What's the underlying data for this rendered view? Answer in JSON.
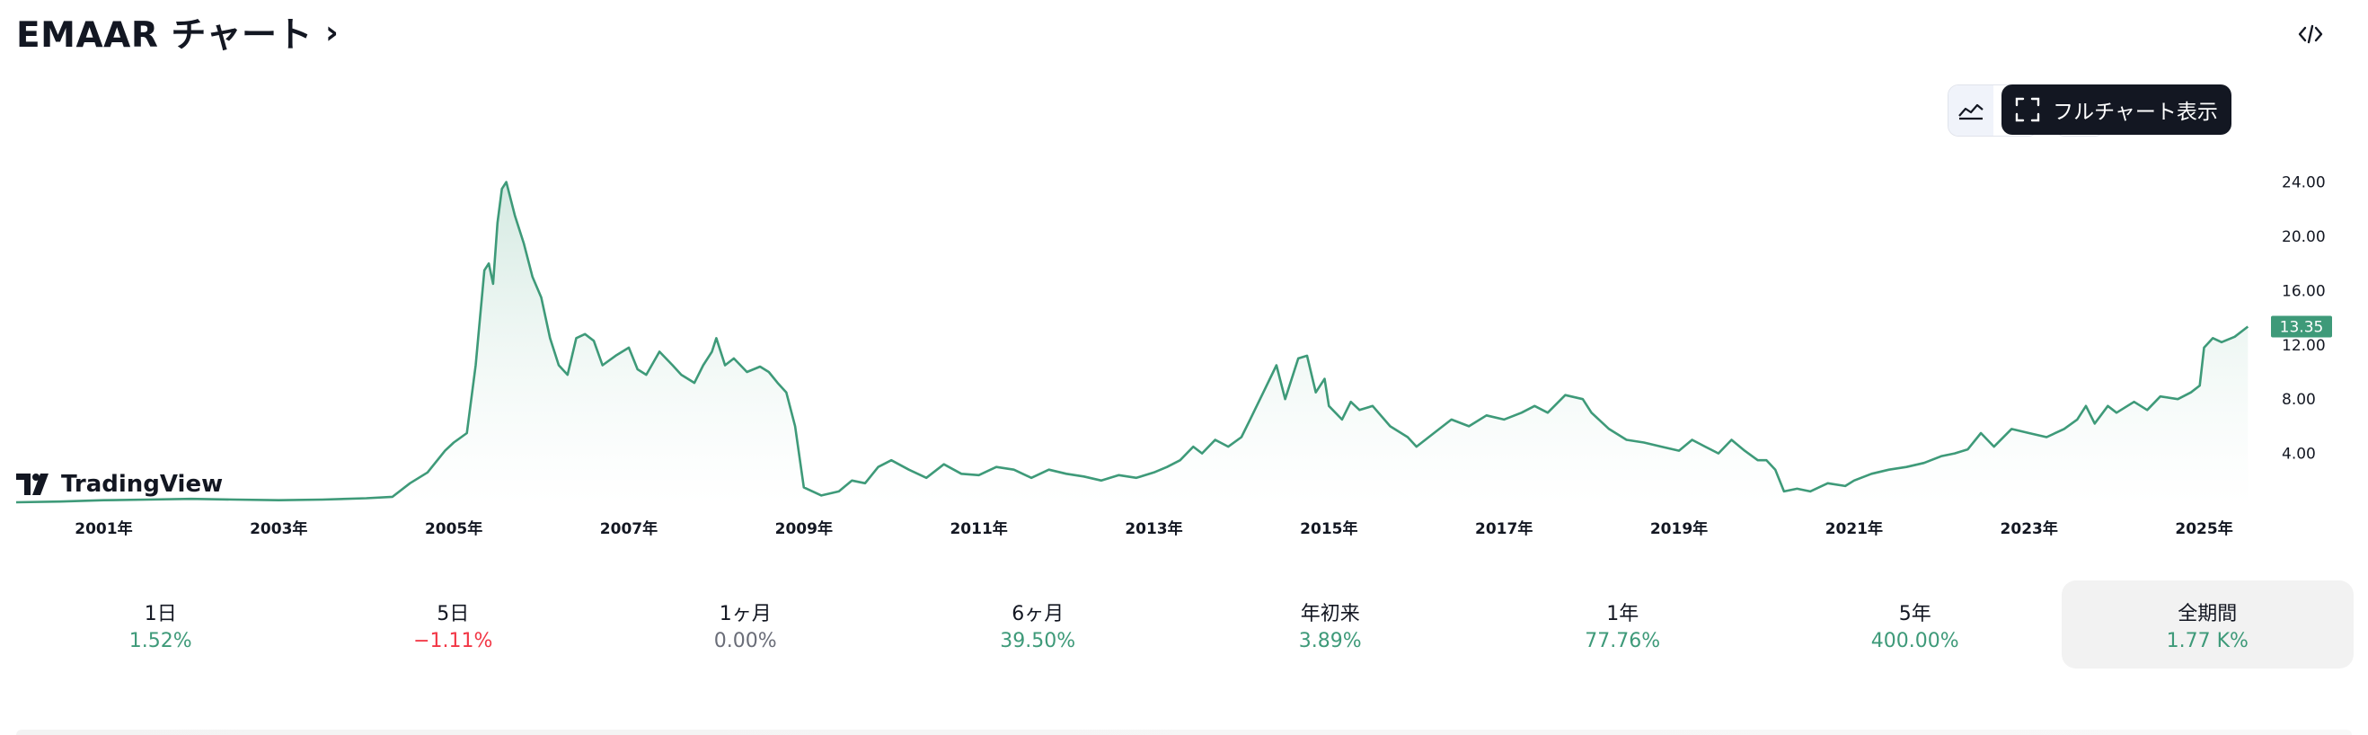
{
  "header": {
    "title": "EMAAR チャート",
    "chevron": "›"
  },
  "toolbar": {
    "full_chart_label": "フルチャート表示",
    "embed_icon": "code-embed-icon",
    "area_icon": "area-chart-icon",
    "candle_icon": "candlestick-icon",
    "snapshot_icon": "camera-icon",
    "fullscreen_icon": "fullscreen-icon"
  },
  "logo": {
    "text": "TradingView"
  },
  "colors": {
    "line": "#3e9a79",
    "fill_top": "#cfe7de",
    "fill_bottom": "#ffffff",
    "last_price_bg": "#3e9a79",
    "negative": "#f23645",
    "text": "#131722"
  },
  "performance": [
    {
      "label": "1日",
      "value": "1.52%",
      "tone": "pos"
    },
    {
      "label": "5日",
      "value": "−1.11%",
      "tone": "neg"
    },
    {
      "label": "1ヶ月",
      "value": "0.00%",
      "tone": "neu"
    },
    {
      "label": "6ヶ月",
      "value": "39.50%",
      "tone": "pos"
    },
    {
      "label": "年初来",
      "value": "3.89%",
      "tone": "pos"
    },
    {
      "label": "1年",
      "value": "77.76%",
      "tone": "pos"
    },
    {
      "label": "5年",
      "value": "400.00%",
      "tone": "pos"
    },
    {
      "label": "全期間",
      "value": "1.77 K%",
      "tone": "pos",
      "active": true
    }
  ],
  "chart_data": {
    "type": "area",
    "x_ticks": [
      "2001年",
      "2003年",
      "2005年",
      "2007年",
      "2009年",
      "2011年",
      "2013年",
      "2015年",
      "2017年",
      "2019年",
      "2021年",
      "2023年",
      "2025年"
    ],
    "x_tick_years": [
      2001,
      2003,
      2005,
      2007,
      2009,
      2011,
      2013,
      2015,
      2017,
      2019,
      2021,
      2023,
      2025
    ],
    "y_ticks": [
      "4.00",
      "8.00",
      "12.00",
      "16.00",
      "20.00",
      "24.00"
    ],
    "y_tick_values": [
      4,
      8,
      12,
      16,
      20,
      24
    ],
    "ylim": [
      0.2,
      25.5
    ],
    "xlim": [
      2000.0,
      2025.6
    ],
    "grid": false,
    "last_price": 13.35,
    "last_price_label": "13.35",
    "series": [
      {
        "x": [
          2000.0,
          2000.5,
          2001.0,
          2001.5,
          2002.0,
          2002.5,
          2003.0,
          2003.5,
          2004.0,
          2004.3,
          2004.5,
          2004.7,
          2004.9,
          2005.0,
          2005.15,
          2005.25,
          2005.35,
          2005.4,
          2005.45,
          2005.5,
          2005.55,
          2005.6,
          2005.7,
          2005.8,
          2005.9,
          2006.0,
          2006.1,
          2006.2,
          2006.3,
          2006.4,
          2006.5,
          2006.6,
          2006.7,
          2006.85,
          2007.0,
          2007.1,
          2007.2,
          2007.35,
          2007.5,
          2007.6,
          2007.75,
          2007.85,
          2007.95,
          2008.0,
          2008.1,
          2008.2,
          2008.35,
          2008.5,
          2008.6,
          2008.7,
          2008.8,
          2008.9,
          2009.0,
          2009.2,
          2009.4,
          2009.55,
          2009.7,
          2009.85,
          2010.0,
          2010.2,
          2010.4,
          2010.6,
          2010.8,
          2011.0,
          2011.2,
          2011.4,
          2011.6,
          2011.8,
          2012.0,
          2012.2,
          2012.4,
          2012.6,
          2012.8,
          2013.0,
          2013.15,
          2013.3,
          2013.45,
          2013.55,
          2013.7,
          2013.85,
          2014.0,
          2014.1,
          2014.25,
          2014.4,
          2014.5,
          2014.65,
          2014.75,
          2014.85,
          2014.95,
          2015.0,
          2015.15,
          2015.25,
          2015.35,
          2015.5,
          2015.7,
          2015.9,
          2016.0,
          2016.2,
          2016.4,
          2016.6,
          2016.8,
          2017.0,
          2017.2,
          2017.35,
          2017.5,
          2017.7,
          2017.9,
          2018.0,
          2018.2,
          2018.4,
          2018.6,
          2018.8,
          2019.0,
          2019.15,
          2019.3,
          2019.45,
          2019.6,
          2019.75,
          2019.9,
          2020.0,
          2020.1,
          2020.2,
          2020.35,
          2020.5,
          2020.7,
          2020.9,
          2021.0,
          2021.2,
          2021.4,
          2021.6,
          2021.8,
          2022.0,
          2022.15,
          2022.3,
          2022.45,
          2022.6,
          2022.8,
          2023.0,
          2023.2,
          2023.4,
          2023.55,
          2023.65,
          2023.75,
          2023.9,
          2024.0,
          2024.2,
          2024.35,
          2024.5,
          2024.7,
          2024.85,
          2024.95,
          2025.0,
          2025.1,
          2025.2,
          2025.35,
          2025.5
        ],
        "y": [
          0.4,
          0.45,
          0.55,
          0.6,
          0.65,
          0.6,
          0.55,
          0.6,
          0.7,
          0.8,
          1.8,
          2.6,
          4.2,
          4.8,
          5.5,
          10.5,
          17.5,
          18.0,
          16.5,
          21.0,
          23.5,
          24.0,
          21.5,
          19.5,
          17.0,
          15.5,
          12.5,
          10.5,
          9.8,
          12.5,
          12.8,
          12.3,
          10.5,
          11.2,
          11.8,
          10.2,
          9.8,
          11.5,
          10.5,
          9.8,
          9.2,
          10.5,
          11.5,
          12.5,
          10.5,
          11.0,
          10.0,
          10.4,
          10.0,
          9.2,
          8.5,
          6.0,
          1.5,
          0.9,
          1.2,
          2.0,
          1.8,
          3.0,
          3.5,
          2.8,
          2.2,
          3.2,
          2.5,
          2.4,
          3.0,
          2.8,
          2.2,
          2.8,
          2.5,
          2.3,
          2.0,
          2.4,
          2.2,
          2.6,
          3.0,
          3.5,
          4.5,
          4.0,
          5.0,
          4.5,
          5.2,
          6.5,
          8.5,
          10.5,
          8.0,
          11.0,
          11.2,
          8.5,
          9.5,
          7.5,
          6.5,
          7.8,
          7.2,
          7.5,
          6.0,
          5.2,
          4.5,
          5.5,
          6.5,
          6.0,
          6.8,
          6.5,
          7.0,
          7.5,
          7.0,
          8.3,
          8.0,
          7.0,
          5.8,
          5.0,
          4.8,
          4.5,
          4.2,
          5.0,
          4.5,
          4.0,
          5.0,
          4.2,
          3.5,
          3.5,
          2.8,
          1.2,
          1.4,
          1.2,
          1.8,
          1.6,
          2.0,
          2.5,
          2.8,
          3.0,
          3.3,
          3.8,
          4.0,
          4.3,
          5.5,
          4.5,
          5.8,
          5.5,
          5.2,
          5.8,
          6.5,
          7.5,
          6.2,
          7.5,
          7.0,
          7.8,
          7.2,
          8.2,
          8.0,
          8.5,
          9.0,
          11.8,
          12.5,
          12.2,
          12.6,
          13.35
        ]
      }
    ]
  }
}
